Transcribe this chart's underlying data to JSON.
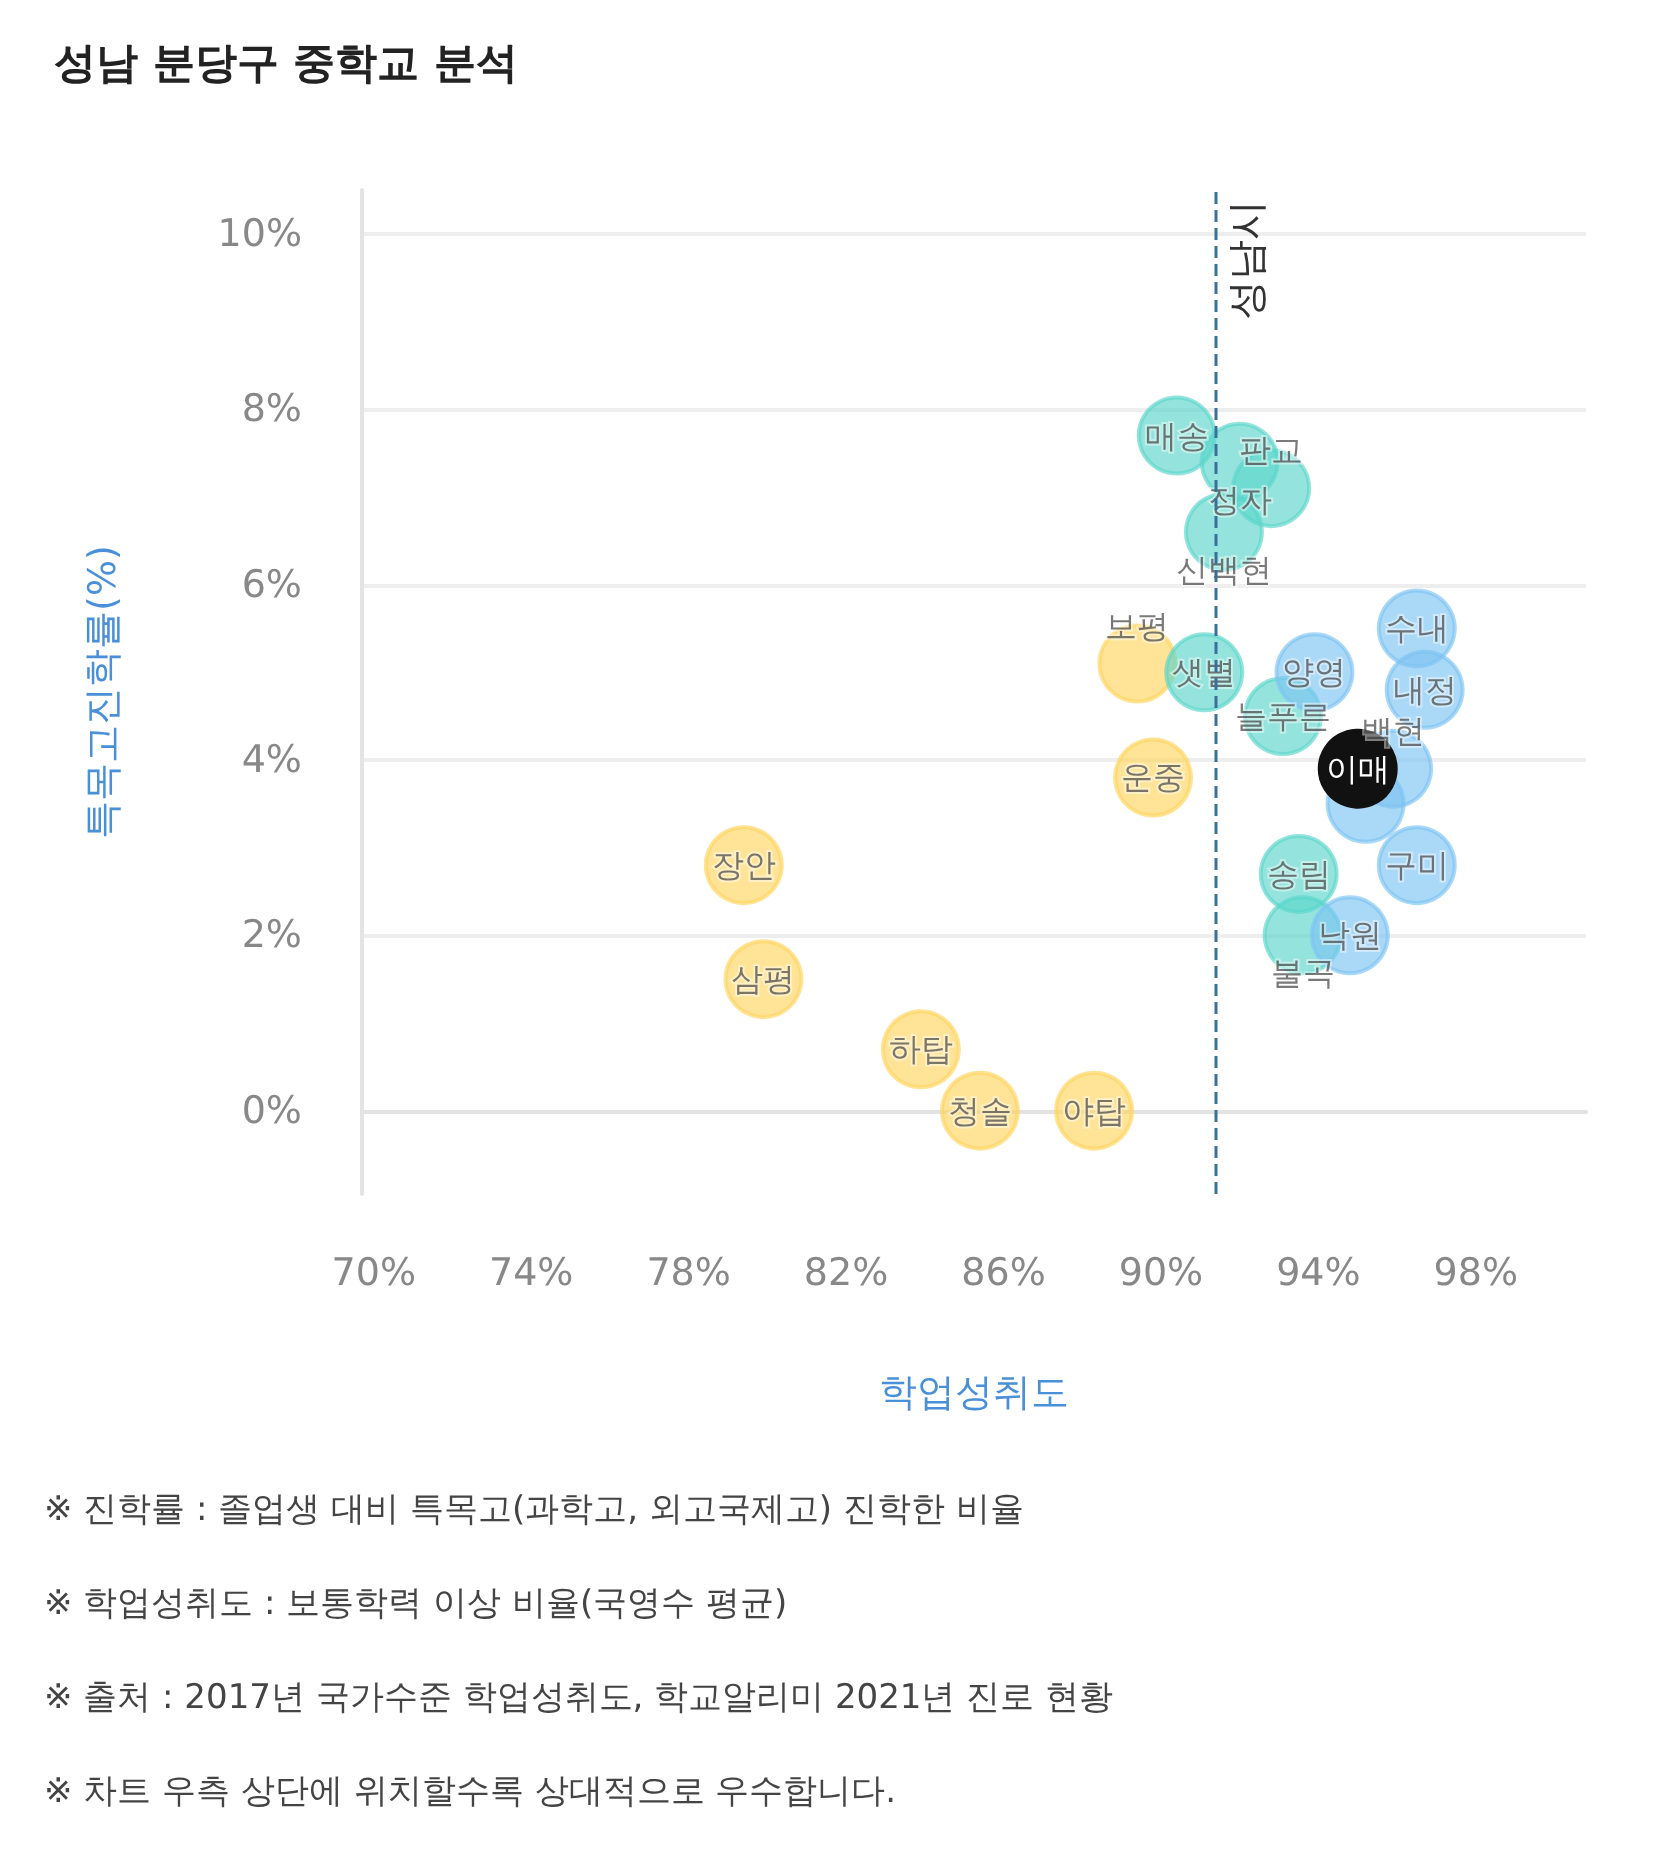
{
  "chart_data": {
    "type": "scatter",
    "title": "성남 분당구 중학교 분석",
    "xlabel": "학업성취도",
    "ylabel": "특목고진학률(%)",
    "marker": "circle",
    "grid": "y",
    "xlim": [
      69.7,
      100.8
    ],
    "xticks": [
      {
        "value": 70,
        "label": "70%"
      },
      {
        "value": 74,
        "label": "74%"
      },
      {
        "value": 78,
        "label": "78%"
      },
      {
        "value": 82,
        "label": "82%"
      },
      {
        "value": 86,
        "label": "86%"
      },
      {
        "value": 90,
        "label": "90%"
      },
      {
        "value": 94,
        "label": "94%"
      },
      {
        "value": 98,
        "label": "98%"
      }
    ],
    "ylim": [
      -0.95,
      10.5
    ],
    "yticks": [
      {
        "value": 0,
        "label": "0%"
      },
      {
        "value": 2,
        "label": "2%"
      },
      {
        "value": 4,
        "label": "4%"
      },
      {
        "value": 6,
        "label": "6%"
      },
      {
        "value": 8,
        "label": "8%"
      },
      {
        "value": 10,
        "label": "10%"
      }
    ],
    "series": [
      {
        "color": "#ffd45e",
        "x": [
          79.4,
          79.9,
          83.9,
          85.4,
          88.3,
          89.4,
          89.8
        ],
        "values": [
          2.8,
          1.5,
          0.7,
          0.0,
          0.0,
          5.1,
          3.8
        ],
        "value_labels": [
          "장안",
          "삼평",
          "하탑",
          "청솔",
          "야탑",
          "보평",
          "운중"
        ]
      },
      {
        "color": "#5ad6cb",
        "x": [
          90.4,
          92.0,
          92.8,
          91.6,
          91.1,
          93.1,
          93.5,
          93.6
        ],
        "values": [
          7.7,
          7.4,
          7.1,
          6.6,
          5.0,
          4.5,
          2.7,
          2.0
        ],
        "value_labels": [
          "매송",
          "정자",
          "판교",
          "신백현",
          "샛별",
          "늘푸른",
          "송림",
          "불곡"
        ]
      },
      {
        "color": "#7cc3f2",
        "x": [
          96.5,
          96.7,
          93.9,
          95.9,
          95.2,
          96.5,
          94.8
        ],
        "values": [
          5.5,
          4.8,
          5.0,
          3.9,
          3.5,
          2.8,
          2.0
        ],
        "value_labels": [
          "수내",
          "내정",
          "양영",
          "백현",
          null,
          "구미",
          "낙원"
        ]
      },
      {
        "color": "#111111",
        "x": [
          95.0
        ],
        "values": [
          3.9
        ],
        "value_labels": [
          "이매"
        ]
      }
    ],
    "ref_lines": [
      {
        "axis": "x",
        "value": 91.4,
        "label": "성남시",
        "color": "#3a6f99",
        "line_style": "dashed"
      }
    ],
    "annotations": [
      "※ 진학률 : 졸업생 대비 특목고(과학고, 외고국제고) 진학한 비율",
      "※ 학업성취도 : 보통학력 이상 비율(국영수 평균)",
      "※ 출처 : 2017년 국가수준 학업성취도, 학교알리미 2021년 진로 현황",
      "※ 차트 우측 상단에 위치할수록 상대적으로 우수합니다."
    ]
  }
}
